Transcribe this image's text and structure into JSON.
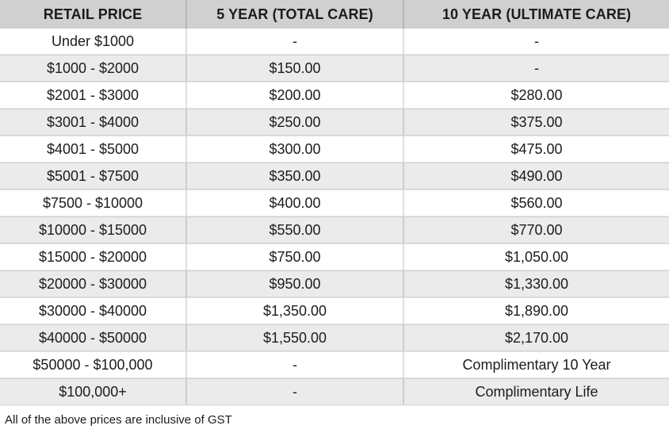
{
  "chart_data": {
    "type": "table",
    "columns": [
      "RETAIL PRICE",
      "5 YEAR (TOTAL CARE)",
      "10 YEAR (ULTIMATE CARE)"
    ],
    "rows": [
      [
        "Under $1000",
        "-",
        "-"
      ],
      [
        "$1000 - $2000",
        "$150.00",
        "-"
      ],
      [
        "$2001 - $3000",
        "$200.00",
        "$280.00"
      ],
      [
        "$3001 - $4000",
        "$250.00",
        "$375.00"
      ],
      [
        "$4001 - $5000",
        "$300.00",
        "$475.00"
      ],
      [
        "$5001 - $7500",
        "$350.00",
        "$490.00"
      ],
      [
        "$7500 - $10000",
        "$400.00",
        "$560.00"
      ],
      [
        "$10000 - $15000",
        "$550.00",
        "$770.00"
      ],
      [
        "$15000 - $20000",
        "$750.00",
        "$1,050.00"
      ],
      [
        "$20000 - $30000",
        "$950.00",
        "$1,330.00"
      ],
      [
        "$30000 - $40000",
        "$1,350.00",
        "$1,890.00"
      ],
      [
        "$40000 - $50000",
        "$1,550.00",
        "$2,170.00"
      ],
      [
        "$50000 - $100,000",
        "-",
        "Complimentary 10 Year"
      ],
      [
        "$100,000+",
        "-",
        "Complimentary Life"
      ]
    ],
    "footnote": "All of the above prices are inclusive of GST",
    "layout": {
      "striped_rows": true,
      "first_data_row_background": "white",
      "cell_text_align": "center"
    }
  },
  "colors": {
    "page_bg": "#ffffff",
    "header_bg": "#d0d0d0",
    "row_bg": "#ffffff",
    "row_alt_bg": "#ebebeb",
    "text": "#1c1c1c"
  }
}
